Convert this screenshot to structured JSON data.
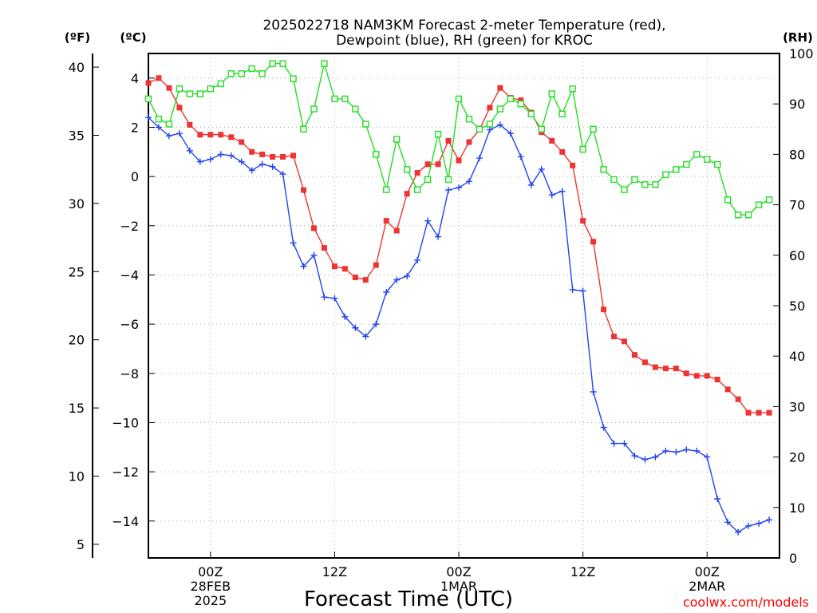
{
  "chart_data": {
    "type": "line",
    "title_line1": "2025022718 NAM3KM Forecast 2-meter Temperature (red),",
    "title_line2": "Dewpoint (blue), RH (green) for KROC",
    "unit_left_f": "(ºF)",
    "unit_left_c": "(ºC)",
    "unit_right": "(RH)",
    "xlabel": "Forecast Time (UTC)",
    "watermark": "coolwx.com/models",
    "x_hours_range": [
      0,
      61
    ],
    "x_ticks": [
      {
        "hour": 6,
        "lines": [
          "00Z",
          "28FEB",
          "2025"
        ]
      },
      {
        "hour": 18,
        "lines": [
          "12Z"
        ]
      },
      {
        "hour": 30,
        "lines": [
          "00Z",
          "1MAR"
        ]
      },
      {
        "hour": 42,
        "lines": [
          "12Z"
        ]
      },
      {
        "hour": 54,
        "lines": [
          "00Z",
          "2MAR"
        ]
      }
    ],
    "c_axis": {
      "range": [
        -15.5,
        5
      ],
      "ticks": [
        4,
        2,
        0,
        -2,
        -4,
        -6,
        -8,
        -10,
        -12,
        -14
      ]
    },
    "f_axis": {
      "range": [
        4,
        41
      ],
      "ticks": [
        40,
        35,
        30,
        25,
        20,
        15,
        10,
        5
      ]
    },
    "rh_axis": {
      "range": [
        0,
        100
      ],
      "ticks": [
        100,
        90,
        80,
        70,
        60,
        50,
        40,
        30,
        20,
        10,
        0
      ]
    },
    "grid": true,
    "series": [
      {
        "name": "Temperature",
        "color": "#ee3333",
        "marker": "filled-square",
        "axis": "c",
        "values": [
          3.8,
          4.0,
          3.6,
          2.8,
          2.1,
          1.7,
          1.7,
          1.7,
          1.6,
          1.4,
          1.0,
          0.9,
          0.8,
          0.8,
          0.85,
          -0.55,
          -2.1,
          -2.9,
          -3.65,
          -3.75,
          -4.1,
          -4.2,
          -3.6,
          -1.8,
          -2.2,
          -0.7,
          0.15,
          0.5,
          0.5,
          1.45,
          0.65,
          1.4,
          1.9,
          2.8,
          3.6,
          3.2,
          3.1,
          2.6,
          1.8,
          1.45,
          1.0,
          0.45,
          -1.8,
          -2.65,
          -5.4,
          -6.5,
          -6.7,
          -7.25,
          -7.55,
          -7.75,
          -7.8,
          -7.8,
          -8.0,
          -8.1,
          -8.1,
          -8.25,
          -8.65,
          -9.05,
          -9.6,
          -9.6,
          -9.6
        ]
      },
      {
        "name": "Dewpoint",
        "color": "#2244ee",
        "marker": "plus",
        "axis": "c",
        "values": [
          2.4,
          2.0,
          1.65,
          1.75,
          1.05,
          0.6,
          0.7,
          0.9,
          0.85,
          0.6,
          0.25,
          0.5,
          0.4,
          0.1,
          -2.7,
          -3.65,
          -3.2,
          -4.9,
          -4.95,
          -5.7,
          -6.15,
          -6.5,
          -6.0,
          -4.7,
          -4.2,
          -4.05,
          -3.4,
          -1.8,
          -2.45,
          -0.55,
          -0.45,
          -0.2,
          0.75,
          1.9,
          2.1,
          1.75,
          0.8,
          -0.35,
          0.3,
          -0.75,
          -0.6,
          -4.6,
          -4.65,
          -8.75,
          -10.2,
          -10.85,
          -10.85,
          -11.35,
          -11.5,
          -11.4,
          -11.15,
          -11.2,
          -11.1,
          -11.15,
          -11.4,
          -13.1,
          -14.05,
          -14.45,
          -14.2,
          -14.1,
          -13.95
        ]
      },
      {
        "name": "RH",
        "color": "#22dd22",
        "marker": "open-square",
        "axis": "rh",
        "values": [
          91,
          87,
          86,
          93,
          92,
          92,
          93,
          94,
          96,
          96,
          97,
          96,
          98,
          98,
          95,
          85,
          89,
          98,
          91,
          91,
          89,
          86,
          80,
          73,
          83,
          77,
          73,
          75,
          84,
          75,
          91,
          87,
          85,
          86,
          89,
          91,
          90,
          88,
          85,
          92,
          88,
          93,
          81,
          85,
          77,
          75,
          73,
          75,
          74,
          74,
          76,
          77,
          78,
          80,
          79,
          78,
          71,
          68,
          68,
          70,
          71
        ]
      }
    ]
  }
}
